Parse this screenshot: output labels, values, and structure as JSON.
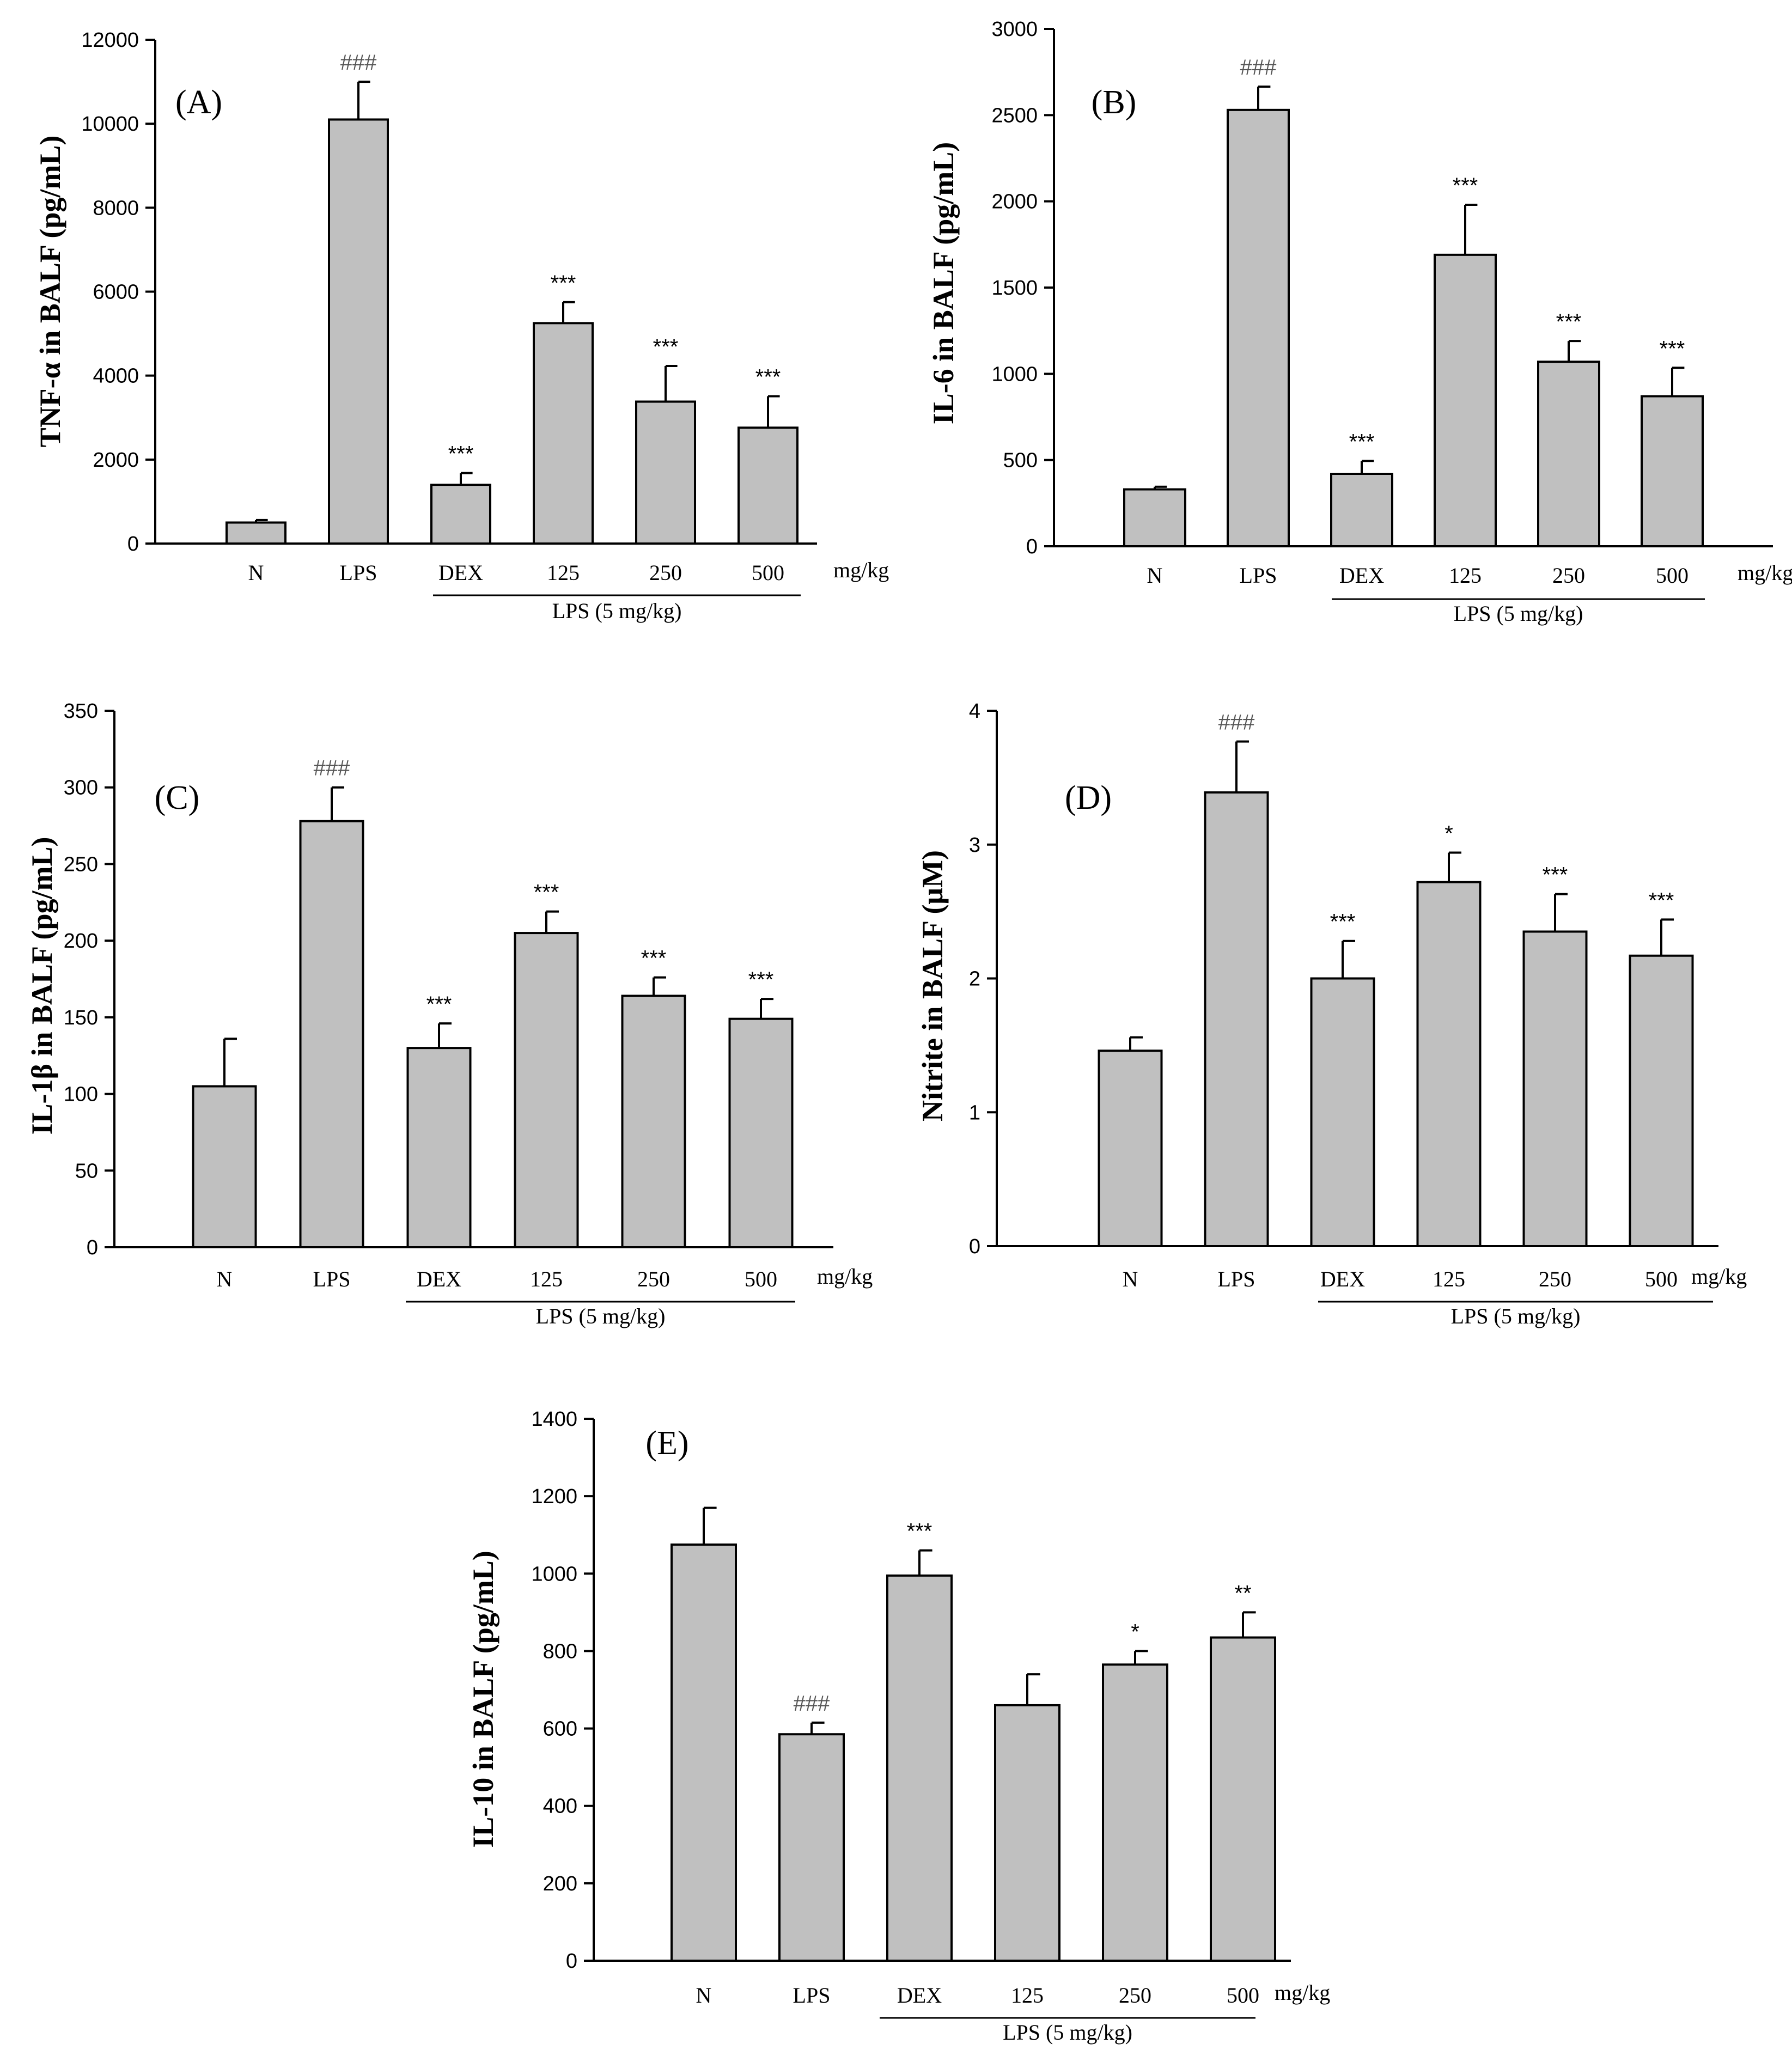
{
  "figure": {
    "shared": {
      "categories": [
        "N",
        "LPS",
        "DEX",
        "125",
        "250",
        "500"
      ],
      "unit_label": "mg/kg",
      "group_label": "LPS (5 mg/kg)"
    }
  },
  "chart_data": [
    {
      "type": "bar",
      "panel": "(A)",
      "ylabel": "TNF-α in BALF (pg/mL)",
      "categories": [
        "N",
        "LPS",
        "DEX",
        "125",
        "250",
        "500"
      ],
      "values": [
        500,
        10100,
        1400,
        5250,
        3380,
        2760
      ],
      "errors": [
        60,
        900,
        280,
        500,
        850,
        750
      ],
      "significance": [
        "",
        "###",
        "***",
        "***",
        "***",
        "***"
      ],
      "ylim": [
        0,
        12000
      ],
      "yticks": [
        0,
        2000,
        4000,
        6000,
        8000,
        10000,
        12000
      ],
      "unit_label": "mg/kg",
      "group_label": "LPS (5 mg/kg)"
    },
    {
      "type": "bar",
      "panel": "(B)",
      "ylabel": "IL-6 in BALF (pg/mL)",
      "categories": [
        "N",
        "LPS",
        "DEX",
        "125",
        "250",
        "500"
      ],
      "values": [
        330,
        2530,
        420,
        1690,
        1070,
        870
      ],
      "errors": [
        15,
        135,
        75,
        290,
        120,
        165
      ],
      "significance": [
        "",
        "###",
        "***",
        "***",
        "***",
        "***"
      ],
      "ylim": [
        0,
        3000
      ],
      "yticks": [
        0,
        500,
        1000,
        1500,
        2000,
        2500,
        3000
      ],
      "unit_label": "mg/kg",
      "group_label": "LPS (5 mg/kg)"
    },
    {
      "type": "bar",
      "panel": "(C)",
      "ylabel": "IL-1β in BALF (pg/mL)",
      "categories": [
        "N",
        "LPS",
        "DEX",
        "125",
        "250",
        "500"
      ],
      "values": [
        105,
        278,
        130,
        205,
        164,
        149
      ],
      "errors": [
        31,
        22,
        16,
        14,
        12,
        13
      ],
      "significance": [
        "",
        "###",
        "***",
        "***",
        "***",
        "***"
      ],
      "ylim": [
        0,
        350
      ],
      "yticks": [
        0,
        50,
        100,
        150,
        200,
        250,
        300,
        350
      ],
      "unit_label": "mg/kg",
      "group_label": "LPS (5 mg/kg)"
    },
    {
      "type": "bar",
      "panel": "(D)",
      "ylabel": "Nitrite in BALF (μM)",
      "categories": [
        "N",
        "LPS",
        "DEX",
        "125",
        "250",
        "500"
      ],
      "values": [
        1.46,
        3.39,
        2.0,
        2.72,
        2.35,
        2.17
      ],
      "errors": [
        0.1,
        0.38,
        0.28,
        0.22,
        0.28,
        0.27
      ],
      "significance": [
        "",
        "###",
        "***",
        "*",
        "***",
        "***"
      ],
      "ylim": [
        0,
        4
      ],
      "yticks": [
        0,
        1,
        2,
        3,
        4
      ],
      "unit_label": "mg/kg",
      "group_label": "LPS (5 mg/kg)"
    },
    {
      "type": "bar",
      "panel": "(E)",
      "ylabel": "IL-10 in BALF (pg/mL)",
      "categories": [
        "N",
        "LPS",
        "DEX",
        "125",
        "250",
        "500"
      ],
      "values": [
        1075,
        585,
        995,
        660,
        765,
        835
      ],
      "errors": [
        95,
        30,
        65,
        80,
        35,
        65
      ],
      "significance": [
        "",
        "###",
        "***",
        "",
        "*",
        "**"
      ],
      "ylim": [
        0,
        1400
      ],
      "yticks": [
        0,
        200,
        400,
        600,
        800,
        1000,
        1200,
        1400
      ],
      "unit_label": "mg/kg",
      "group_label": "LPS (5 mg/kg)"
    }
  ]
}
